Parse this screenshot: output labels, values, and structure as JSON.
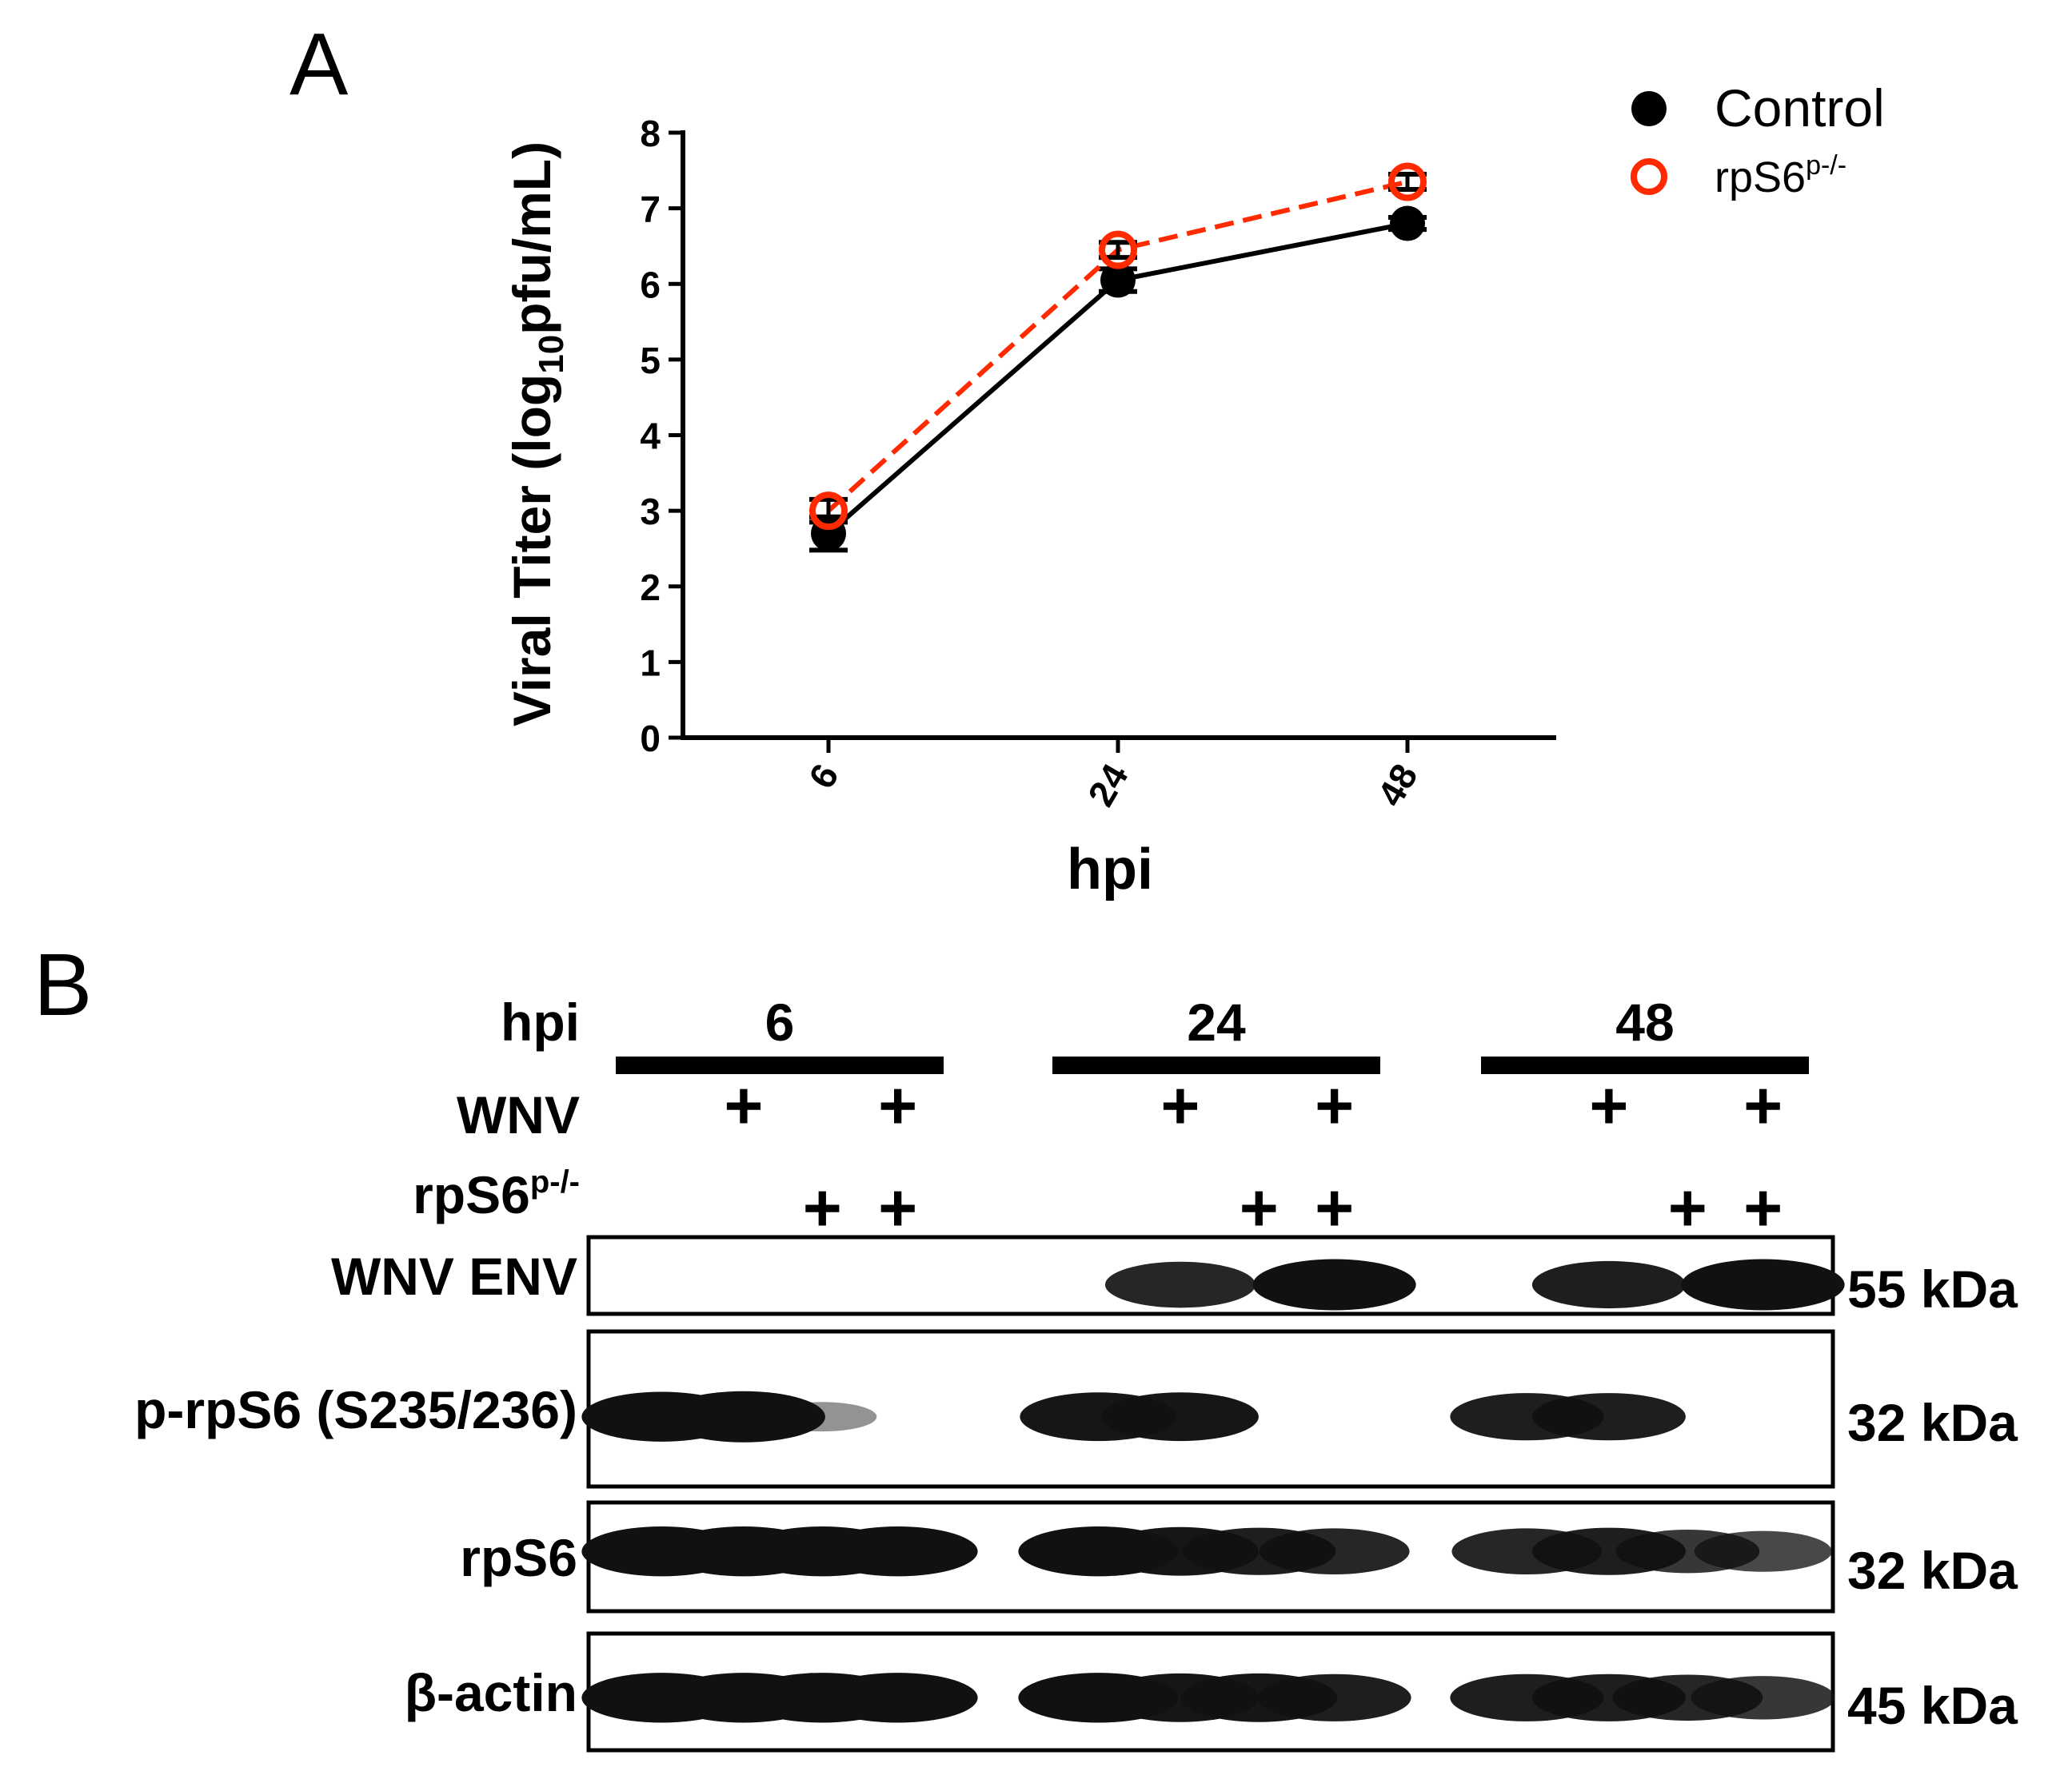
{
  "panel_a": {
    "label": "A",
    "legend": [
      {
        "name": "Control",
        "marker": "filled-circle",
        "color": "#000000"
      },
      {
        "name": "rpS6",
        "superscript": "p-/-",
        "marker": "open-circle",
        "color": "#ff2a00"
      }
    ]
  },
  "chart_data": {
    "type": "line",
    "x_axis": {
      "label": "hpi",
      "categories": [
        "6",
        "24",
        "48"
      ]
    },
    "y_axis": {
      "label_main": "Viral Titer (log",
      "label_sub": "10",
      "label_end": "pfu/mL)",
      "ylim": [
        0,
        8
      ],
      "ticks": [
        "0",
        "1",
        "2",
        "3",
        "4",
        "5",
        "6",
        "7",
        "8"
      ]
    },
    "grid": false,
    "legend_position": "top-right",
    "series": [
      {
        "name": "Control",
        "color": "#000000",
        "line": "solid",
        "marker": "filled",
        "values": [
          2.7,
          6.05,
          6.8
        ],
        "errors": [
          0.22,
          0.15,
          0.08
        ]
      },
      {
        "name": "rpS6p-/-",
        "color": "#ff2a00",
        "line": "dashed",
        "marker": "open",
        "values": [
          3.0,
          6.45,
          7.35
        ],
        "errors": [
          0.15,
          0.1,
          0.1
        ]
      }
    ]
  },
  "panel_b": {
    "label": "B",
    "row_labels": {
      "hpi": "hpi",
      "wnv": "WNV",
      "rps6": "rpS6",
      "rps6_sup": "p-/-"
    },
    "groups": [
      {
        "hpi": "6",
        "wnv": [
          false,
          true,
          false,
          true
        ],
        "rps6": [
          false,
          false,
          true,
          true
        ]
      },
      {
        "hpi": "24",
        "wnv": [
          false,
          true,
          false,
          true
        ],
        "rps6": [
          false,
          false,
          true,
          true
        ]
      },
      {
        "hpi": "48",
        "wnv": [
          false,
          true,
          false,
          true
        ],
        "rps6": [
          false,
          false,
          true,
          true
        ]
      }
    ],
    "plus_sign": "+",
    "blots": [
      {
        "name": "WNV ENV",
        "size": "55 kDa",
        "band_intensity": [
          0,
          0,
          0,
          0,
          0,
          0.8,
          0,
          1,
          0,
          0.85,
          0,
          1
        ]
      },
      {
        "name": "p-rpS6 (S235/236)",
        "size": "32 kDa",
        "band_intensity": [
          0.95,
          1,
          0.15,
          0,
          0.9,
          0.9,
          0,
          0,
          0.85,
          0.85,
          0,
          0
        ]
      },
      {
        "name": "rpS6",
        "size": "32 kDa",
        "band_intensity": [
          0.95,
          0.95,
          0.95,
          0.95,
          0.95,
          0.9,
          0.85,
          0.8,
          0.8,
          0.85,
          0.7,
          0.6
        ]
      },
      {
        "name": "β-actin",
        "size": "45 kDa",
        "band_intensity": [
          0.95,
          0.95,
          0.95,
          0.95,
          0.95,
          0.9,
          0.9,
          0.85,
          0.85,
          0.85,
          0.8,
          0.7
        ]
      }
    ]
  }
}
